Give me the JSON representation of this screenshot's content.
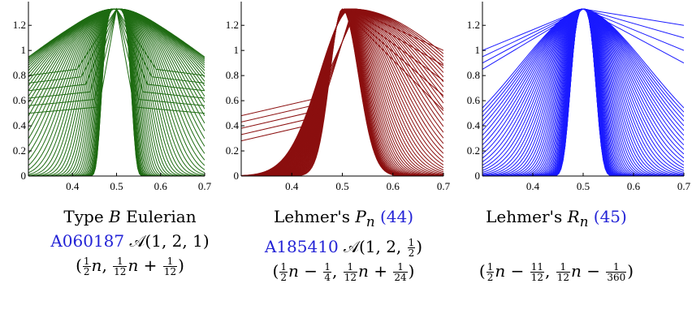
{
  "chart_data": [
    {
      "type": "line",
      "color": "#1e6b12",
      "xlim": [
        0.3,
        0.7
      ],
      "ylim": [
        0,
        1.35
      ],
      "xticks": [
        "0.4",
        "0.5",
        "0.6",
        "0.7"
      ],
      "yticks": [
        "0",
        "0.2",
        "0.4",
        "0.6",
        "0.8",
        "1",
        "1.2"
      ],
      "peak_x": 0.5,
      "peak_y": 1.33,
      "series_count": 60,
      "caption": {
        "line1_prefix": "Type ",
        "line1_var": "B",
        "line1_suffix": " Eulerian",
        "seq_id": "A060187",
        "seq_params": "𝒜(1, 2, 1)",
        "params_text": "(1/2 n, 1/12 n + 1/12)"
      }
    },
    {
      "type": "line",
      "color": "#8b0f0f",
      "xlim": [
        0.3,
        0.7
      ],
      "ylim": [
        0,
        1.35
      ],
      "xticks": [
        "0.4",
        "0.5",
        "0.6",
        "0.7"
      ],
      "yticks": [
        "0",
        "0.2",
        "0.4",
        "0.6",
        "0.8",
        "1",
        "1.2"
      ],
      "peak_x": 0.5,
      "peak_y": 1.33,
      "series_count": 60,
      "caption": {
        "line1_prefix": "Lehmer's ",
        "line1_var": "P",
        "line1_sub": "n",
        "eq_ref": "(44)",
        "seq_id": "A185410",
        "seq_params": "𝒜(1, 2, 1/2)",
        "params_text": "(1/2 n − 1/4, 1/12 n + 1/24)"
      }
    },
    {
      "type": "line",
      "color": "#1a1aff",
      "xlim": [
        0.3,
        0.7
      ],
      "ylim": [
        0,
        1.35
      ],
      "xticks": [
        "0.4",
        "0.5",
        "0.6",
        "0.7"
      ],
      "yticks": [
        "0",
        "0.2",
        "0.4",
        "0.6",
        "0.8",
        "1",
        "1.2"
      ],
      "peak_x": 0.5,
      "peak_y": 1.33,
      "series_count": 60,
      "caption": {
        "line1_prefix": "Lehmer's ",
        "line1_var": "R",
        "line1_sub": "n",
        "eq_ref": "(45)",
        "params_text": "(1/2 n − 11/12, 1/12 n − 1/360)"
      }
    }
  ]
}
